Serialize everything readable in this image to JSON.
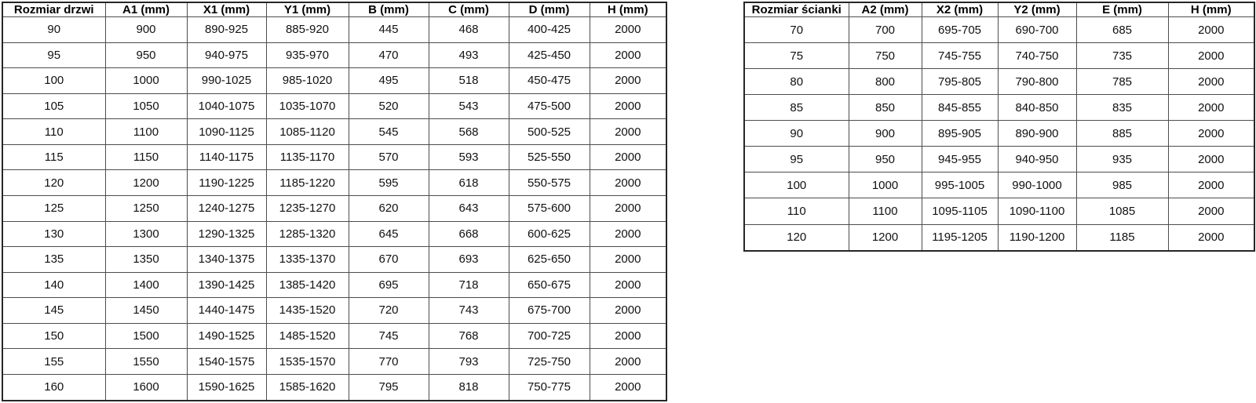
{
  "colors": {
    "background": "#ffffff",
    "outer_border": "#262626",
    "inner_border": "#4d4d4d",
    "text": "#111111"
  },
  "tables": [
    {
      "name": "door-sizes",
      "headers": [
        "Rozmiar drzwi",
        "A1 (mm)",
        "X1 (mm)",
        "Y1 (mm)",
        "B (mm)",
        "C (mm)",
        "D (mm)",
        "H (mm)"
      ],
      "rows": [
        [
          "90",
          "900",
          "890-925",
          "885-920",
          "445",
          "468",
          "400-425",
          "2000"
        ],
        [
          "95",
          "950",
          "940-975",
          "935-970",
          "470",
          "493",
          "425-450",
          "2000"
        ],
        [
          "100",
          "1000",
          "990-1025",
          "985-1020",
          "495",
          "518",
          "450-475",
          "2000"
        ],
        [
          "105",
          "1050",
          "1040-1075",
          "1035-1070",
          "520",
          "543",
          "475-500",
          "2000"
        ],
        [
          "110",
          "1100",
          "1090-1125",
          "1085-1120",
          "545",
          "568",
          "500-525",
          "2000"
        ],
        [
          "115",
          "1150",
          "1140-1175",
          "1135-1170",
          "570",
          "593",
          "525-550",
          "2000"
        ],
        [
          "120",
          "1200",
          "1190-1225",
          "1185-1220",
          "595",
          "618",
          "550-575",
          "2000"
        ],
        [
          "125",
          "1250",
          "1240-1275",
          "1235-1270",
          "620",
          "643",
          "575-600",
          "2000"
        ],
        [
          "130",
          "1300",
          "1290-1325",
          "1285-1320",
          "645",
          "668",
          "600-625",
          "2000"
        ],
        [
          "135",
          "1350",
          "1340-1375",
          "1335-1370",
          "670",
          "693",
          "625-650",
          "2000"
        ],
        [
          "140",
          "1400",
          "1390-1425",
          "1385-1420",
          "695",
          "718",
          "650-675",
          "2000"
        ],
        [
          "145",
          "1450",
          "1440-1475",
          "1435-1520",
          "720",
          "743",
          "675-700",
          "2000"
        ],
        [
          "150",
          "1500",
          "1490-1525",
          "1485-1520",
          "745",
          "768",
          "700-725",
          "2000"
        ],
        [
          "155",
          "1550",
          "1540-1575",
          "1535-1570",
          "770",
          "793",
          "725-750",
          "2000"
        ],
        [
          "160",
          "1600",
          "1590-1625",
          "1585-1620",
          "795",
          "818",
          "750-775",
          "2000"
        ]
      ]
    },
    {
      "name": "wall-sizes",
      "headers": [
        "Rozmiar ścianki",
        "A2 (mm)",
        "X2 (mm)",
        "Y2 (mm)",
        "E (mm)",
        "H (mm)"
      ],
      "rows": [
        [
          "70",
          "700",
          "695-705",
          "690-700",
          "685",
          "2000"
        ],
        [
          "75",
          "750",
          "745-755",
          "740-750",
          "735",
          "2000"
        ],
        [
          "80",
          "800",
          "795-805",
          "790-800",
          "785",
          "2000"
        ],
        [
          "85",
          "850",
          "845-855",
          "840-850",
          "835",
          "2000"
        ],
        [
          "90",
          "900",
          "895-905",
          "890-900",
          "885",
          "2000"
        ],
        [
          "95",
          "950",
          "945-955",
          "940-950",
          "935",
          "2000"
        ],
        [
          "100",
          "1000",
          "995-1005",
          "990-1000",
          "985",
          "2000"
        ],
        [
          "110",
          "1100",
          "1095-1105",
          "1090-1100",
          "1085",
          "2000"
        ],
        [
          "120",
          "1200",
          "1195-1205",
          "1190-1200",
          "1185",
          "2000"
        ]
      ]
    }
  ]
}
